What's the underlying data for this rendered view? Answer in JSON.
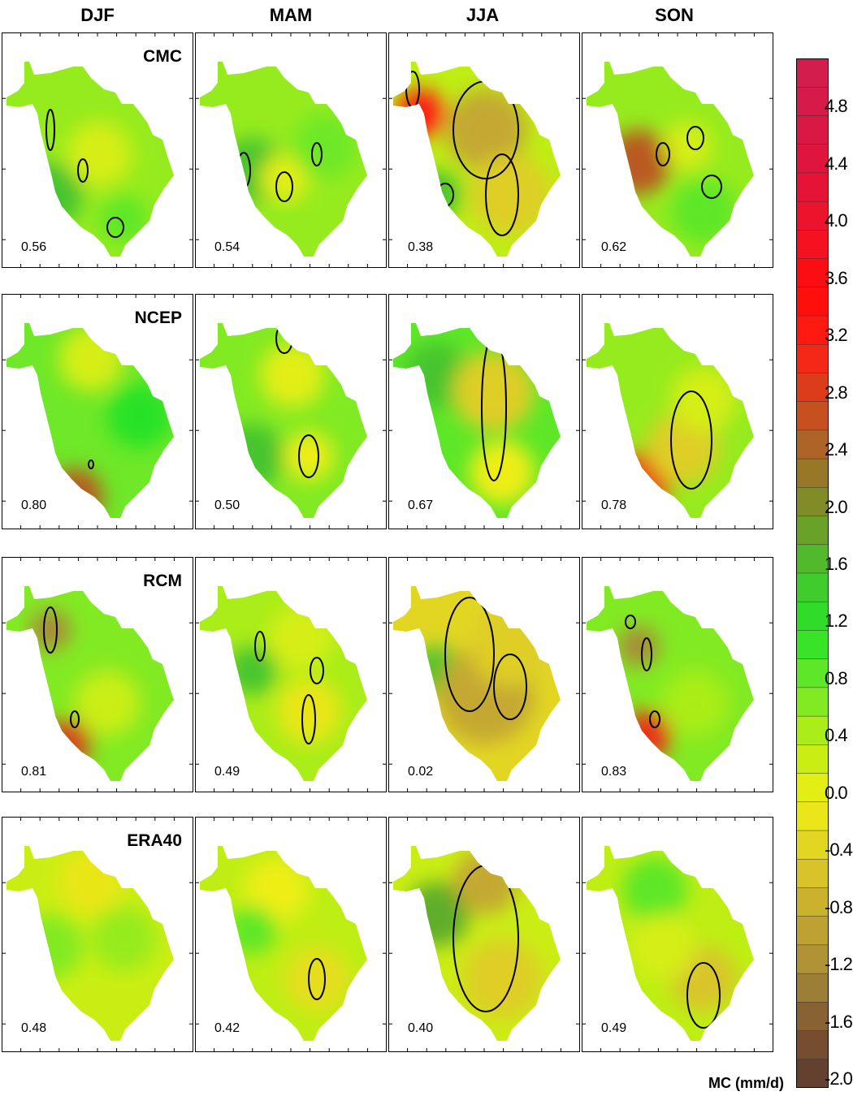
{
  "seasons": [
    "DJF",
    "MAM",
    "JJA",
    "SON"
  ],
  "models": [
    "CMC",
    "NCEP",
    "RCM",
    "ERA40"
  ],
  "chart_data": {
    "type": "heatmap",
    "description_rows": [
      "CMC",
      "NCEP",
      "RCM",
      "ERA40"
    ],
    "columns": [
      "DJF",
      "MAM",
      "JJA",
      "SON"
    ],
    "correlations": [
      [
        "0.56",
        "0.54",
        "0.38",
        "0.62"
      ],
      [
        "0.80",
        "0.50",
        "0.67",
        "0.78"
      ],
      [
        "0.81",
        "0.49",
        "0.02",
        "0.83"
      ],
      [
        "0.48",
        "0.42",
        "0.40",
        "0.49"
      ]
    ],
    "colorbar": {
      "label": "MC (mm/d)",
      "min": -2.0,
      "max": 5.2,
      "ticks": [
        "4.8",
        "4.4",
        "4.0",
        "3.6",
        "3.2",
        "2.8",
        "2.4",
        "2.0",
        "1.6",
        "1.2",
        "0.8",
        "0.4",
        "0.0",
        "-0.4",
        "-0.8",
        "-1.2",
        "-1.6",
        "-2.0"
      ],
      "tick_values": [
        4.8,
        4.4,
        4.0,
        3.6,
        3.2,
        2.8,
        2.4,
        2.0,
        1.6,
        1.2,
        0.8,
        0.4,
        0.0,
        -0.4,
        -0.8,
        -1.2,
        -1.6,
        -2.0
      ]
    }
  }
}
